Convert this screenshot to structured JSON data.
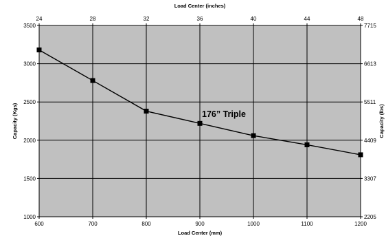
{
  "chart_data": {
    "type": "line",
    "title": "",
    "annotation": "176” Triple",
    "x": [
      600,
      700,
      800,
      900,
      1000,
      1100,
      1200
    ],
    "values": [
      3180,
      2780,
      2380,
      2220,
      2060,
      1940,
      1810
    ],
    "xlabel": "Load Center (mm)",
    "ylabel": "Capacity (Kgs)",
    "x2label": "Load Center (inches)",
    "y2label": "Capacity (lbs)",
    "xlim": [
      600,
      1200
    ],
    "ylim": [
      1000,
      3500
    ],
    "x_ticks": [
      "600",
      "700",
      "800",
      "900",
      "1000",
      "1100",
      "1200"
    ],
    "y_ticks": [
      "1000",
      "1500",
      "2000",
      "2500",
      "3000",
      "3500"
    ],
    "x2_ticks": [
      "24",
      "28",
      "32",
      "36",
      "40",
      "44",
      "48"
    ],
    "y2_ticks": [
      "2205",
      "3307",
      "4409",
      "5511",
      "6613",
      "7715"
    ],
    "grid": true,
    "plot_background": "#c0c0c0",
    "line_color": "#000000",
    "marker": "square"
  }
}
